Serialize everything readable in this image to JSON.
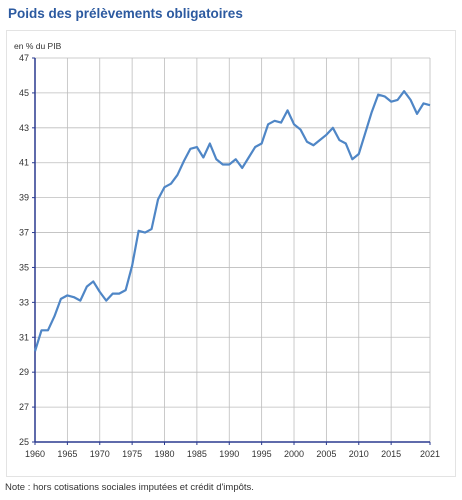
{
  "title": "Poids des prélèvements obligatoires",
  "note": "Note : hors cotisations sociales imputées et crédit d'impôts.",
  "colors": {
    "title": "#2c5aa0",
    "line": "#4f86c6",
    "grid": "#bdbdbd",
    "axis": "#2a3a8f"
  },
  "chart_data": {
    "type": "line",
    "unit_label": "en % du PIB",
    "xlabel": "",
    "ylabel": "",
    "xlim": [
      1960,
      2021
    ],
    "ylim": [
      25,
      47
    ],
    "y_ticks": [
      25,
      27,
      29,
      31,
      33,
      35,
      37,
      39,
      41,
      43,
      45,
      47
    ],
    "x_ticks": [
      1960,
      1965,
      1970,
      1975,
      1980,
      1985,
      1990,
      1995,
      2000,
      2005,
      2010,
      2015,
      2021
    ],
    "grid": true,
    "legend": "none",
    "series": [
      {
        "points": [
          [
            1960,
            30.2
          ],
          [
            1961,
            31.4
          ],
          [
            1962,
            31.4
          ],
          [
            1963,
            32.2
          ],
          [
            1964,
            33.2
          ],
          [
            1965,
            33.4
          ],
          [
            1966,
            33.3
          ],
          [
            1967,
            33.1
          ],
          [
            1968,
            33.9
          ],
          [
            1969,
            34.2
          ],
          [
            1970,
            33.6
          ],
          [
            1971,
            33.1
          ],
          [
            1972,
            33.5
          ],
          [
            1973,
            33.5
          ],
          [
            1974,
            33.7
          ],
          [
            1975,
            35.1
          ],
          [
            1976,
            37.1
          ],
          [
            1977,
            37.0
          ],
          [
            1978,
            37.2
          ],
          [
            1979,
            38.9
          ],
          [
            1980,
            39.6
          ],
          [
            1981,
            39.8
          ],
          [
            1982,
            40.3
          ],
          [
            1983,
            41.1
          ],
          [
            1984,
            41.8
          ],
          [
            1985,
            41.9
          ],
          [
            1986,
            41.3
          ],
          [
            1987,
            42.1
          ],
          [
            1988,
            41.2
          ],
          [
            1989,
            40.9
          ],
          [
            1990,
            40.9
          ],
          [
            1991,
            41.2
          ],
          [
            1992,
            40.7
          ],
          [
            1993,
            41.3
          ],
          [
            1994,
            41.9
          ],
          [
            1995,
            42.1
          ],
          [
            1996,
            43.2
          ],
          [
            1997,
            43.4
          ],
          [
            1998,
            43.3
          ],
          [
            1999,
            44.0
          ],
          [
            2000,
            43.2
          ],
          [
            2001,
            42.9
          ],
          [
            2002,
            42.2
          ],
          [
            2003,
            42.0
          ],
          [
            2004,
            42.3
          ],
          [
            2005,
            42.6
          ],
          [
            2006,
            43.0
          ],
          [
            2007,
            42.3
          ],
          [
            2008,
            42.1
          ],
          [
            2009,
            41.2
          ],
          [
            2010,
            41.5
          ],
          [
            2011,
            42.7
          ],
          [
            2012,
            43.9
          ],
          [
            2013,
            44.9
          ],
          [
            2014,
            44.8
          ],
          [
            2015,
            44.5
          ],
          [
            2016,
            44.6
          ],
          [
            2017,
            45.1
          ],
          [
            2018,
            44.6
          ],
          [
            2019,
            43.8
          ],
          [
            2020,
            44.4
          ],
          [
            2021,
            44.3
          ]
        ]
      }
    ]
  }
}
